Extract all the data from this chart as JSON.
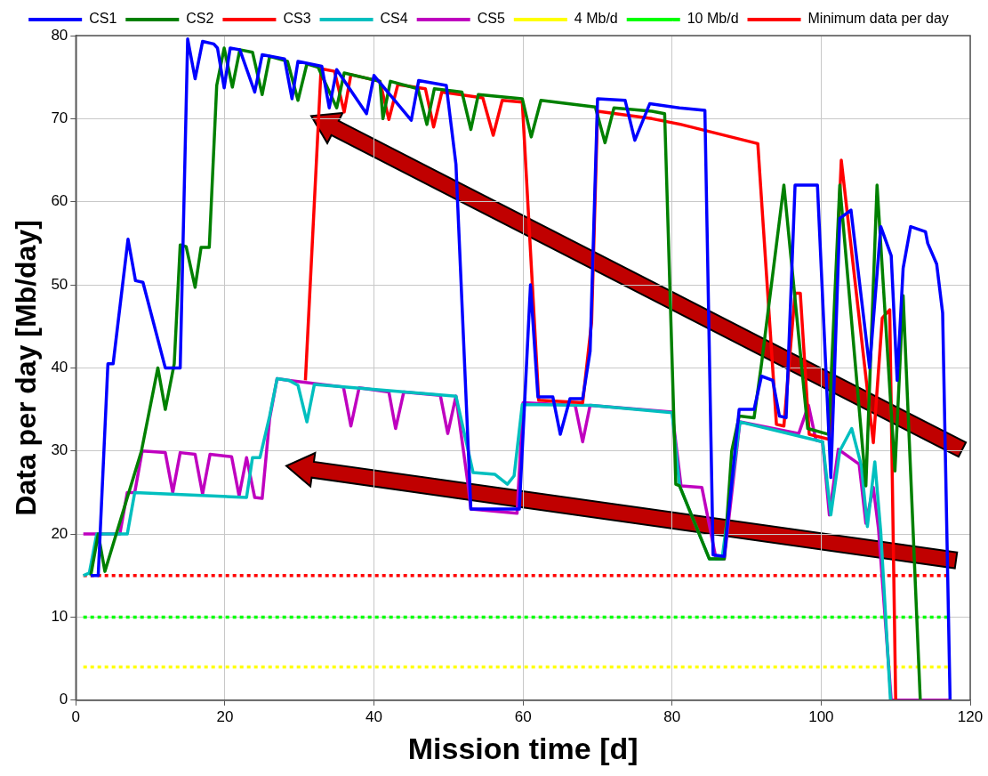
{
  "chart_data": {
    "type": "line",
    "xlabel": "Mission time [d]",
    "ylabel": "Data per day [Mb/day]",
    "xlim": [
      0,
      120
    ],
    "ylim": [
      0,
      80
    ],
    "xticks": [
      0,
      20,
      40,
      60,
      80,
      100,
      120
    ],
    "yticks": [
      0,
      10,
      20,
      30,
      40,
      50,
      60,
      70,
      80
    ],
    "grid": true,
    "legend": "top",
    "marker": "none",
    "line_style": "solid",
    "series": [
      {
        "name": "CS1",
        "color": "#0000ff",
        "x": [
          2,
          3,
          4.3,
          5,
          7,
          8,
          9,
          12,
          14,
          15,
          16,
          17,
          18.5,
          19,
          19.9,
          20.7,
          22,
          24,
          25,
          28,
          29,
          29.8,
          33,
          34,
          35,
          39,
          40,
          45,
          46,
          49.7,
          51,
          53,
          59.5,
          61,
          62,
          64,
          65,
          66.3,
          68,
          69,
          70,
          73.7,
          75,
          77,
          81,
          84.4,
          85.5,
          87,
          89,
          90,
          91,
          92,
          93.5,
          94.4,
          95.3,
          96.5,
          99.5,
          101.3,
          102.5,
          104,
          106.5,
          108,
          109.4,
          110.2,
          111,
          112,
          114,
          114.3,
          115.5,
          116.3,
          117.3
        ],
        "values": [
          15,
          15,
          40.5,
          40.5,
          55.5,
          50.5,
          50.3,
          40,
          40,
          79.6,
          74.8,
          79.3,
          79,
          78.5,
          73.7,
          78.5,
          78.3,
          73.2,
          77.7,
          77.2,
          72.4,
          76.9,
          76.3,
          71.3,
          75.9,
          70.6,
          75.2,
          69.8,
          74.6,
          74,
          64.5,
          23,
          23,
          50,
          36.5,
          36.5,
          32,
          36.3,
          36.3,
          42,
          72.4,
          72.2,
          67.4,
          71.8,
          71.3,
          71,
          17.5,
          17.3,
          35,
          35,
          35,
          39,
          38.5,
          34.2,
          34,
          62,
          62,
          26.8,
          58,
          59,
          40,
          57,
          53.5,
          38.5,
          52,
          57,
          56.4,
          55,
          52.5,
          46.6,
          0
        ]
      },
      {
        "name": "CS2",
        "color": "#008000",
        "x": [
          2,
          3,
          3.9,
          8.8,
          11,
          12,
          13.2,
          14,
          14.8,
          16,
          16.8,
          17.9,
          18.9,
          19.9,
          21,
          22,
          23.7,
          25,
          26,
          28.4,
          29.8,
          31,
          32.5,
          35,
          36,
          40.8,
          41.2,
          42.2,
          45.9,
          47.1,
          48.1,
          51.8,
          53,
          54,
          59.9,
          61.1,
          62.4,
          69.7,
          71,
          72.2,
          77.3,
          79,
          80.5,
          81,
          85,
          87,
          88,
          89,
          91,
          92,
          95,
          98.2,
          101,
          102.5,
          106,
          107.5,
          109.9,
          111,
          113.3
        ],
        "values": [
          15,
          20,
          15.5,
          30,
          40,
          35,
          40.5,
          54.8,
          54.6,
          49.7,
          54.5,
          54.5,
          74,
          78.5,
          73.8,
          78.3,
          78,
          72.9,
          77.5,
          76.9,
          72.2,
          76.6,
          76.2,
          71.3,
          75.5,
          74.5,
          70,
          74.5,
          73.6,
          69.3,
          73.6,
          73.2,
          68.7,
          72.9,
          72.4,
          67.8,
          72.2,
          71.4,
          67.1,
          71.3,
          70.9,
          70.6,
          26,
          25.8,
          17,
          17,
          30,
          34.2,
          34,
          40.5,
          62,
          32.7,
          32,
          62,
          25.8,
          62,
          27.6,
          48.7,
          0
        ]
      },
      {
        "name": "CS3",
        "color": "#ff0000",
        "x": [
          30.8,
          32.9,
          34.7,
          36,
          36.9,
          40.8,
          42,
          43.2,
          46.9,
          48,
          49.1,
          54.6,
          56,
          57.2,
          59.9,
          62.1,
          68,
          69.2,
          70,
          77.3,
          81.2,
          91.5,
          94,
          95,
          96.5,
          97.2,
          98.4,
          101.1,
          102.7,
          107,
          108.2,
          109.2,
          110
        ],
        "values": [
          38.5,
          76,
          75.7,
          70.8,
          75.3,
          74.5,
          69.9,
          74.1,
          73.6,
          69,
          73.2,
          72.5,
          68,
          72.2,
          72,
          36.1,
          35.8,
          45.5,
          70.9,
          70,
          69.3,
          67,
          33.2,
          33,
          49,
          49,
          32,
          31.4,
          65,
          31,
          46,
          47,
          0
        ]
      },
      {
        "name": "CS4",
        "color": "#00bfbf",
        "x": [
          1,
          1.8,
          2.8,
          6.9,
          7.9,
          22.9,
          23.7,
          24.7,
          26,
          27,
          28.6,
          29.8,
          31,
          32,
          51,
          53.3,
          56.2,
          57.9,
          58.8,
          59.9,
          69.2,
          80,
          81,
          85,
          86.7,
          89.1,
          97,
          100.2,
          101.3,
          102.5,
          104.1,
          105.4,
          106.2,
          107.2,
          108,
          109.3
        ],
        "values": [
          15,
          15.3,
          20,
          20,
          25,
          24.4,
          29.2,
          29.2,
          34.2,
          38.7,
          38.5,
          37.9,
          33.5,
          38,
          36.6,
          27.4,
          27.2,
          26,
          27,
          35.6,
          35.5,
          34.6,
          25.8,
          17,
          17,
          33.5,
          31.8,
          31.1,
          22.3,
          30,
          32.7,
          28.2,
          20.9,
          28.7,
          20.2,
          0
        ]
      },
      {
        "name": "CS5",
        "color": "#bf00bf",
        "x": [
          1,
          5.9,
          6.9,
          7.9,
          8.9,
          12,
          13,
          14,
          16,
          17,
          18,
          20.9,
          21.9,
          22.9,
          24,
          25,
          26,
          27,
          28.6,
          35.9,
          36.9,
          38,
          42,
          42.9,
          44,
          48.9,
          49.9,
          51,
          52.6,
          53,
          59.2,
          60,
          67,
          68,
          69,
          80,
          81.2,
          84,
          85.9,
          87,
          89.1,
          97,
          98.3,
          99.3,
          100.2,
          101.1,
          102.3,
          105.1,
          106,
          107,
          107.7,
          109.4,
          117.2
        ],
        "values": [
          20,
          20,
          25,
          25,
          30,
          29.8,
          25,
          29.8,
          29.6,
          24.8,
          29.6,
          29.3,
          24.6,
          29.2,
          24.4,
          24.3,
          33.9,
          38.7,
          38.5,
          37.7,
          33,
          37.6,
          37.1,
          32.7,
          37.1,
          36.7,
          32.1,
          36.6,
          26.1,
          23,
          22.5,
          35.8,
          35.5,
          31.1,
          35.5,
          34.7,
          25.8,
          25.6,
          17,
          17,
          33.5,
          32.1,
          35.5,
          31.3,
          31.1,
          22.3,
          30.2,
          28.4,
          21.3,
          25.6,
          20.6,
          0,
          0
        ]
      },
      {
        "name": "4 Mb/d",
        "color": "#ffff00",
        "line_style": "dotted",
        "x": [
          1,
          117
        ],
        "values": [
          4,
          4
        ]
      },
      {
        "name": "10 Mb/d",
        "color": "#00ff00",
        "line_style": "dotted",
        "x": [
          1,
          117
        ],
        "values": [
          10,
          10
        ]
      },
      {
        "name": "Minimum data per day",
        "color": "#ff0000",
        "line_style": "dotted",
        "x": [
          1,
          117
        ],
        "values": [
          15,
          15
        ]
      }
    ]
  }
}
